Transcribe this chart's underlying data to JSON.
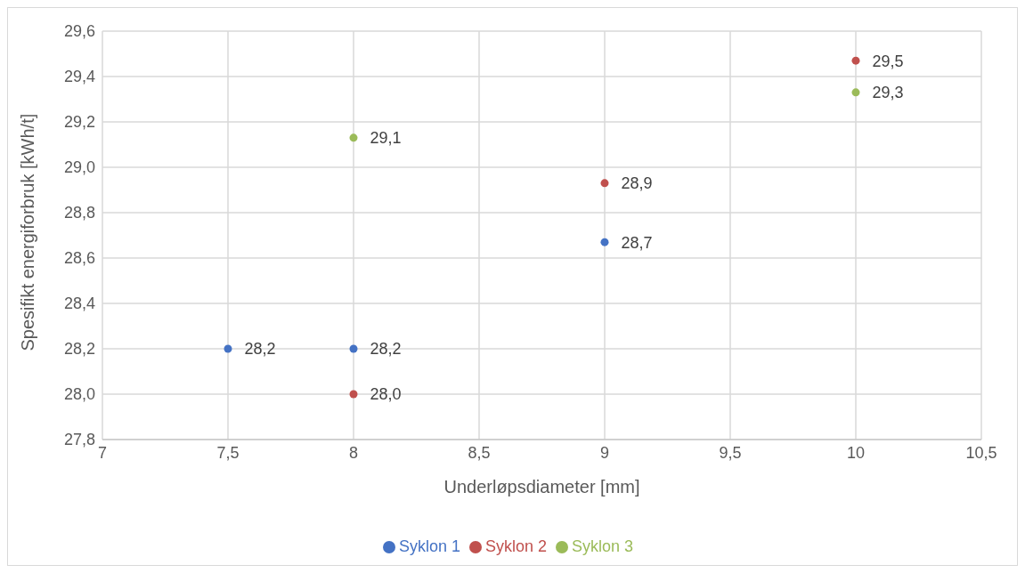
{
  "chart_data": {
    "type": "scatter",
    "xlabel": "Underløpsdiameter [mm]",
    "ylabel": "Spesifikt energiforbruk [kWh/t]",
    "xlim": [
      7,
      10.5
    ],
    "xticks": [
      7,
      {
        "value": 7.5,
        "label": "7,5"
      },
      8,
      {
        "value": 8.5,
        "label": "8,5"
      },
      9,
      {
        "value": 9.5,
        "label": "9,5"
      },
      10,
      {
        "value": 10.5,
        "label": "10,5"
      }
    ],
    "ylim": [
      27.8,
      29.6
    ],
    "yticks": [
      {
        "value": 27.8,
        "label": "27,8"
      },
      {
        "value": 28.0,
        "label": "28,0"
      },
      {
        "value": 28.2,
        "label": "28,2"
      },
      {
        "value": 28.4,
        "label": "28,4"
      },
      {
        "value": 28.6,
        "label": "28,6"
      },
      {
        "value": 28.8,
        "label": "28,8"
      },
      {
        "value": 29.0,
        "label": "29,0"
      },
      {
        "value": 29.2,
        "label": "29,2"
      },
      {
        "value": 29.4,
        "label": "29,4"
      },
      {
        "value": 29.6,
        "label": "29,6"
      }
    ],
    "grid": true,
    "legend": "bottom",
    "marker": "circle",
    "series": [
      {
        "name": "Syklon 1",
        "color": "#4472c4",
        "x": [
          7.5,
          8,
          9
        ],
        "values": [
          28.2,
          28.2,
          28.67
        ],
        "value_labels": [
          "28,2",
          "28,2",
          "28,7"
        ]
      },
      {
        "name": "Syklon 2",
        "color": "#c0504d",
        "x": [
          8,
          9,
          10
        ],
        "values": [
          28.0,
          28.93,
          29.47
        ],
        "value_labels": [
          "28,0",
          "28,9",
          "29,5"
        ]
      },
      {
        "name": "Syklon 3",
        "color": "#9bbb59",
        "x": [
          8,
          10
        ],
        "values": [
          29.13,
          29.33
        ],
        "value_labels": [
          "29,1",
          "29,3"
        ]
      }
    ]
  }
}
